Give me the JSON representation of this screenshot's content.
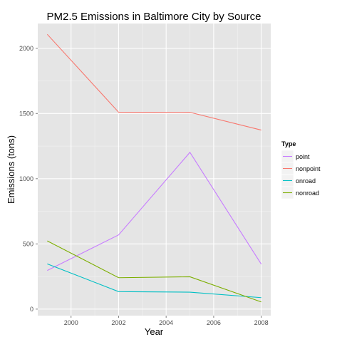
{
  "chart_data": {
    "type": "line",
    "title": "PM2.5 Emissions in Baltimore City by Source",
    "xlabel": "Year",
    "ylabel": "Emissions (tons)",
    "x": [
      1999,
      2002,
      2005,
      2008
    ],
    "xlim": [
      1998.6,
      2008.4
    ],
    "ylim": [
      -50,
      2190
    ],
    "x_ticks": [
      2000,
      2002,
      2004,
      2006,
      2008
    ],
    "y_ticks": [
      0,
      500,
      1000,
      1500,
      2000
    ],
    "grid": true,
    "legend": {
      "title": "Type",
      "position": "right"
    },
    "series": [
      {
        "name": "point",
        "color": "#c77cff",
        "values": [
          296,
          569,
          1202,
          345
        ]
      },
      {
        "name": "nonpoint",
        "color": "#f8766d",
        "values": [
          2107,
          1510,
          1509,
          1373
        ]
      },
      {
        "name": "onroad",
        "color": "#00bfc4",
        "values": [
          347,
          134,
          130,
          88
        ]
      },
      {
        "name": "nonroad",
        "color": "#7cae00",
        "values": [
          523,
          241,
          248,
          55
        ]
      }
    ]
  }
}
